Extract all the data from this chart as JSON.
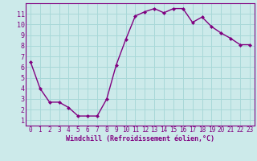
{
  "x": [
    0,
    1,
    2,
    3,
    4,
    5,
    6,
    7,
    8,
    9,
    10,
    11,
    12,
    13,
    14,
    15,
    16,
    17,
    18,
    19,
    20,
    21,
    22,
    23
  ],
  "y": [
    6.5,
    4.0,
    2.7,
    2.7,
    2.2,
    1.4,
    1.4,
    1.4,
    3.0,
    6.2,
    8.6,
    10.8,
    11.2,
    11.5,
    11.1,
    11.5,
    11.5,
    10.2,
    10.7,
    9.8,
    9.2,
    8.7,
    8.1,
    8.1
  ],
  "line_color": "#800080",
  "marker": "D",
  "marker_size": 2.0,
  "linewidth": 1.0,
  "xlabel": "Windchill (Refroidissement éolien,°C)",
  "xlabel_fontsize": 6.0,
  "xlim": [
    -0.5,
    23.5
  ],
  "ylim": [
    0.5,
    12.0
  ],
  "yticks": [
    1,
    2,
    3,
    4,
    5,
    6,
    7,
    8,
    9,
    10,
    11
  ],
  "xticks": [
    0,
    1,
    2,
    3,
    4,
    5,
    6,
    7,
    8,
    9,
    10,
    11,
    12,
    13,
    14,
    15,
    16,
    17,
    18,
    19,
    20,
    21,
    22,
    23
  ],
  "grid_color": "#a8d8d8",
  "bg_color": "#cceaea",
  "tick_fontsize": 5.5,
  "tick_color": "#800080",
  "spine_color": "#800080"
}
